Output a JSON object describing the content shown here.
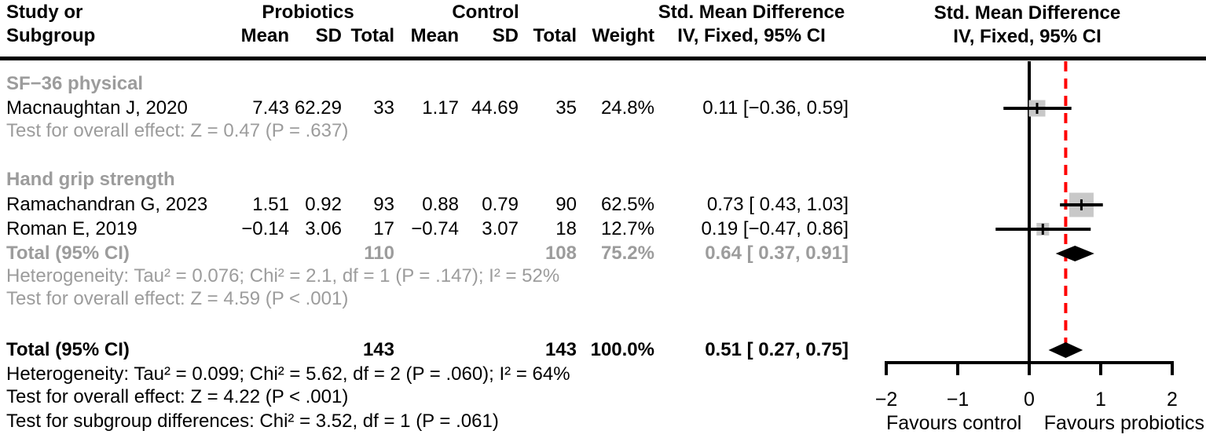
{
  "colors": {
    "text": "#000000",
    "muted_gray": "#9c9c9c",
    "overall_line_red": "#ff0000",
    "weight_square_gray": "#c8c8c8",
    "diamond_black": "#000000"
  },
  "header": {
    "col1_line1": "Study or",
    "col1_line2": "Subgroup",
    "group_probiotics": "Probiotics",
    "group_control": "Control",
    "mean": "Mean",
    "sd": "SD",
    "total": "Total",
    "weight": "Weight",
    "smd_line1": "Std. Mean Difference",
    "smd_line2": "IV, Fixed, 95% CI",
    "plot_line1": "Std. Mean Difference",
    "plot_line2": "IV, Fixed, 95% CI"
  },
  "subgroup1": {
    "title": "SF−36 physical",
    "studies": [
      {
        "name": "Macnaughtan J, 2020",
        "mean1": "7.43",
        "sd1": "62.29",
        "total1": "33",
        "mean2": "1.17",
        "sd2": "44.69",
        "total2": "35",
        "weight": "24.8%",
        "ci": "0.11 [−0.36, 0.59]"
      }
    ],
    "overall_effect": "Test for overall effect: Z = 0.47 (P = .637)"
  },
  "subgroup2": {
    "title": "Hand grip strength",
    "studies": [
      {
        "name": "Ramachandran G, 2023",
        "mean1": "1.51",
        "sd1": "0.92",
        "total1": "93",
        "mean2": "0.88",
        "sd2": "0.79",
        "total2": "90",
        "weight": "62.5%",
        "ci": "0.73 [ 0.43, 1.03]"
      },
      {
        "name": "Roman E, 2019",
        "mean1": "−0.14",
        "sd1": "3.06",
        "total1": "17",
        "mean2": "−0.74",
        "sd2": "3.07",
        "total2": "18",
        "weight": "12.7%",
        "ci": "0.19 [−0.47, 0.86]"
      }
    ],
    "total_row": {
      "label": "Total (95% CI)",
      "total1": "110",
      "total2": "108",
      "weight": "75.2%",
      "ci": "0.64 [ 0.37, 0.91]"
    },
    "heterogeneity": "Heterogeneity: Tau² = 0.076; Chi² = 2.1, df = 1 (P = .147); I² = 52%",
    "overall_effect": "Test for overall effect: Z = 4.59 (P < .001)"
  },
  "overall": {
    "label": "Total (95% CI)",
    "total1": "143",
    "total2": "143",
    "weight": "100.0%",
    "ci": "0.51 [ 0.27, 0.75]",
    "heterogeneity": "Heterogeneity: Tau² = 0.099; Chi² = 5.62, df = 2 (P = .060); I² = 64%",
    "overall_effect": "Test for overall effect: Z = 4.22 (P < .001)",
    "subgroup_diff": "Test for subgroup differences: Chi² = 3.52, df = 1 (P = .061)"
  },
  "chart_data": {
    "type": "forest",
    "effect_measure": "Std. Mean Difference, IV, Fixed, 95% CI",
    "x_axis": {
      "range": [
        -2,
        2
      ],
      "ticks": [
        -2,
        -1,
        0,
        1,
        2
      ],
      "tick_labels": [
        "−2",
        "−1",
        "0",
        "1",
        "2"
      ],
      "favours_left": "Favours control",
      "favours_right": "Favours probiotics"
    },
    "zero_line": 0,
    "overall_effect_line": 0.51,
    "studies": [
      {
        "name": "Macnaughtan J, 2020",
        "subgroup": "SF−36 physical",
        "est": 0.11,
        "lo": -0.36,
        "hi": 0.59,
        "weight_pct": 24.8
      },
      {
        "name": "Ramachandran G, 2023",
        "subgroup": "Hand grip strength",
        "est": 0.73,
        "lo": 0.43,
        "hi": 1.03,
        "weight_pct": 62.5
      },
      {
        "name": "Roman E, 2019",
        "subgroup": "Hand grip strength",
        "est": 0.19,
        "lo": -0.47,
        "hi": 0.86,
        "weight_pct": 12.7
      }
    ],
    "subtotals": [
      {
        "label": "Hand grip strength Total (95% CI)",
        "est": 0.64,
        "lo": 0.37,
        "hi": 0.91
      }
    ],
    "overall": {
      "label": "Total (95% CI)",
      "est": 0.51,
      "lo": 0.27,
      "hi": 0.75
    }
  }
}
